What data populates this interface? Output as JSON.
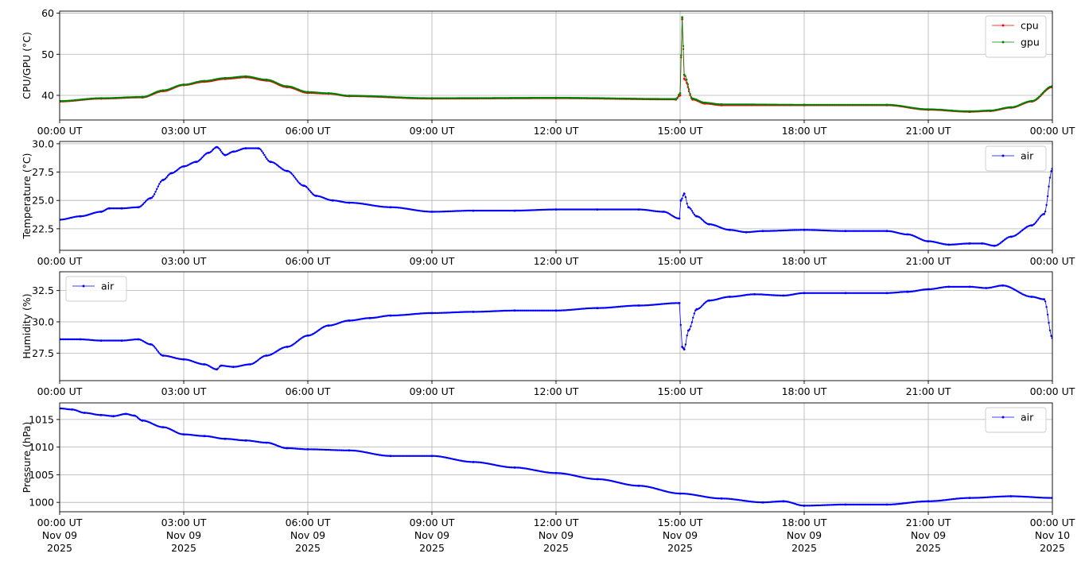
{
  "x_axis": {
    "tick_labels": [
      "00:00 UT",
      "03:00 UT",
      "06:00 UT",
      "09:00 UT",
      "12:00 UT",
      "15:00 UT",
      "18:00 UT",
      "21:00 UT",
      "00:00 UT"
    ],
    "date_lines": [
      "Nov 09",
      "Nov 09",
      "Nov 09",
      "Nov 09",
      "Nov 09",
      "Nov 09",
      "Nov 09",
      "Nov 09",
      "Nov 10"
    ],
    "year_lines": [
      "2025",
      "2025",
      "2025",
      "2025",
      "2025",
      "2025",
      "2025",
      "2025",
      "2025"
    ]
  },
  "chart_data": [
    {
      "type": "line",
      "ylabel": "CPU/GPU (°C)",
      "ylim": [
        34,
        60.5
      ],
      "yticks": [
        40,
        50,
        60
      ],
      "ytick_labels": [
        "40",
        "50",
        "60"
      ],
      "grid": true,
      "legend": "top-right",
      "xlim_hours": [
        0,
        24
      ],
      "series": [
        {
          "name": "cpu",
          "color": "#ff0000",
          "x_hours": [
            0,
            1,
            2,
            2.5,
            3,
            3.5,
            4,
            4.5,
            5,
            5.5,
            6,
            6.5,
            7,
            9,
            12,
            14.9,
            15.0,
            15.05,
            15.1,
            15.3,
            15.6,
            16,
            18,
            20,
            21,
            22,
            22.5,
            23,
            23.5,
            24
          ],
          "values": [
            38.5,
            39.2,
            39.5,
            41,
            42.5,
            43.3,
            44,
            44.4,
            43.6,
            42,
            40.6,
            40.4,
            39.8,
            39.2,
            39.3,
            39.0,
            40,
            58.5,
            44,
            39,
            38,
            37.6,
            37.6,
            37.6,
            36.5,
            36,
            36.2,
            37,
            38.5,
            42
          ]
        },
        {
          "name": "gpu",
          "color": "#008000",
          "x_hours": [
            0,
            1,
            2,
            2.5,
            3,
            3.5,
            4,
            4.5,
            5,
            5.5,
            6,
            6.5,
            7,
            9,
            12,
            14.9,
            15.0,
            15.05,
            15.1,
            15.3,
            15.6,
            16,
            18,
            20,
            21,
            22,
            22.5,
            23,
            23.5,
            24
          ],
          "values": [
            38.6,
            39.3,
            39.6,
            41.2,
            42.6,
            43.5,
            44.2,
            44.6,
            43.8,
            42.2,
            40.8,
            40.5,
            39.9,
            39.3,
            39.4,
            39.1,
            40.5,
            59,
            45,
            39.2,
            38.2,
            37.8,
            37.7,
            37.7,
            36.6,
            36.1,
            36.3,
            37.1,
            38.6,
            42.2
          ]
        }
      ]
    },
    {
      "type": "line",
      "ylabel": "Temperature (°C)",
      "ylim": [
        20.6,
        30.2
      ],
      "yticks": [
        22.5,
        25.0,
        27.5,
        30.0
      ],
      "ytick_labels": [
        "22.5",
        "25.0",
        "27.5",
        "30.0"
      ],
      "grid": true,
      "legend": "top-right",
      "xlim_hours": [
        0,
        24
      ],
      "series": [
        {
          "name": "air",
          "color": "#0000ff",
          "x_hours": [
            0,
            0.5,
            1,
            1.2,
            1.5,
            1.9,
            2.2,
            2.5,
            2.7,
            3,
            3.3,
            3.6,
            3.8,
            4,
            4.2,
            4.5,
            4.8,
            5.1,
            5.5,
            5.9,
            6.2,
            6.6,
            7,
            8,
            9,
            10,
            11,
            12,
            13,
            14,
            14.6,
            14.98,
            15.02,
            15.1,
            15.2,
            15.4,
            15.7,
            16.2,
            16.6,
            17,
            18,
            19,
            20,
            20.5,
            21,
            21.5,
            22,
            22.3,
            22.6,
            23,
            23.5,
            23.8,
            24
          ],
          "values": [
            23.3,
            23.6,
            24.0,
            24.3,
            24.3,
            24.4,
            25.2,
            26.8,
            27.4,
            28.0,
            28.4,
            29.2,
            29.7,
            29.0,
            29.3,
            29.6,
            29.6,
            28.4,
            27.6,
            26.3,
            25.4,
            25.0,
            24.8,
            24.4,
            24.0,
            24.1,
            24.1,
            24.2,
            24.2,
            24.2,
            24.0,
            23.4,
            25.0,
            25.6,
            24.4,
            23.6,
            22.9,
            22.4,
            22.2,
            22.3,
            22.4,
            22.3,
            22.3,
            22.0,
            21.4,
            21.1,
            21.2,
            21.2,
            21.0,
            21.8,
            22.8,
            23.8,
            27.8
          ]
        }
      ]
    },
    {
      "type": "line",
      "ylabel": "Humidity (%)",
      "ylim": [
        25.3,
        34
      ],
      "yticks": [
        27.5,
        30.0,
        32.5
      ],
      "ytick_labels": [
        "27.5",
        "30.0",
        "32.5"
      ],
      "grid": true,
      "legend": "top-left",
      "xlim_hours": [
        0,
        24
      ],
      "series": [
        {
          "name": "air",
          "color": "#0000ff",
          "x_hours": [
            0,
            0.5,
            1,
            1.5,
            1.9,
            2.2,
            2.5,
            3,
            3.5,
            3.8,
            3.9,
            4.2,
            4.6,
            5,
            5.5,
            6,
            6.5,
            7,
            7.5,
            8,
            9,
            10,
            11,
            12,
            13,
            14,
            14.98,
            15.05,
            15.1,
            15.2,
            15.4,
            15.7,
            16.2,
            16.8,
            17.5,
            18,
            19,
            20,
            20.5,
            21,
            21.5,
            22,
            22.4,
            22.8,
            23.5,
            23.8,
            24
          ],
          "values": [
            28.6,
            28.6,
            28.5,
            28.5,
            28.6,
            28.2,
            27.3,
            27.0,
            26.6,
            26.2,
            26.5,
            26.4,
            26.6,
            27.3,
            28.0,
            28.9,
            29.7,
            30.1,
            30.3,
            30.5,
            30.7,
            30.8,
            30.9,
            30.9,
            31.1,
            31.3,
            31.5,
            28.0,
            27.8,
            29.3,
            31.0,
            31.7,
            32.0,
            32.2,
            32.1,
            32.3,
            32.3,
            32.3,
            32.4,
            32.6,
            32.8,
            32.8,
            32.7,
            32.9,
            32.0,
            31.8,
            28.7
          ]
        }
      ]
    },
    {
      "type": "line",
      "ylabel": "Pressure (hPa)",
      "ylim": [
        998.3,
        1018
      ],
      "yticks": [
        1000,
        1005,
        1010,
        1015
      ],
      "ytick_labels": [
        "1000",
        "1005",
        "1010",
        "1015"
      ],
      "grid": true,
      "legend": "top-right",
      "xlim_hours": [
        0,
        24
      ],
      "series": [
        {
          "name": "air",
          "color": "#0000ff",
          "x_hours": [
            0,
            0.3,
            0.6,
            1,
            1.3,
            1.6,
            1.8,
            2,
            2.5,
            3,
            3.5,
            4,
            4.5,
            5,
            5.5,
            6,
            7,
            8,
            9,
            10,
            11,
            12,
            13,
            14,
            15,
            16,
            17,
            17.5,
            18,
            19,
            20,
            21,
            22,
            23,
            24
          ],
          "values": [
            1017,
            1016.8,
            1016.2,
            1015.8,
            1015.6,
            1016.0,
            1015.7,
            1014.8,
            1013.6,
            1012.3,
            1012.0,
            1011.5,
            1011.2,
            1010.8,
            1009.8,
            1009.6,
            1009.4,
            1008.4,
            1008.4,
            1007.3,
            1006.3,
            1005.3,
            1004.2,
            1003.0,
            1001.6,
            1000.7,
            1000.0,
            1000.2,
            999.4,
            999.6,
            999.6,
            1000.2,
            1000.8,
            1001.1,
            1000.8
          ]
        }
      ]
    }
  ]
}
